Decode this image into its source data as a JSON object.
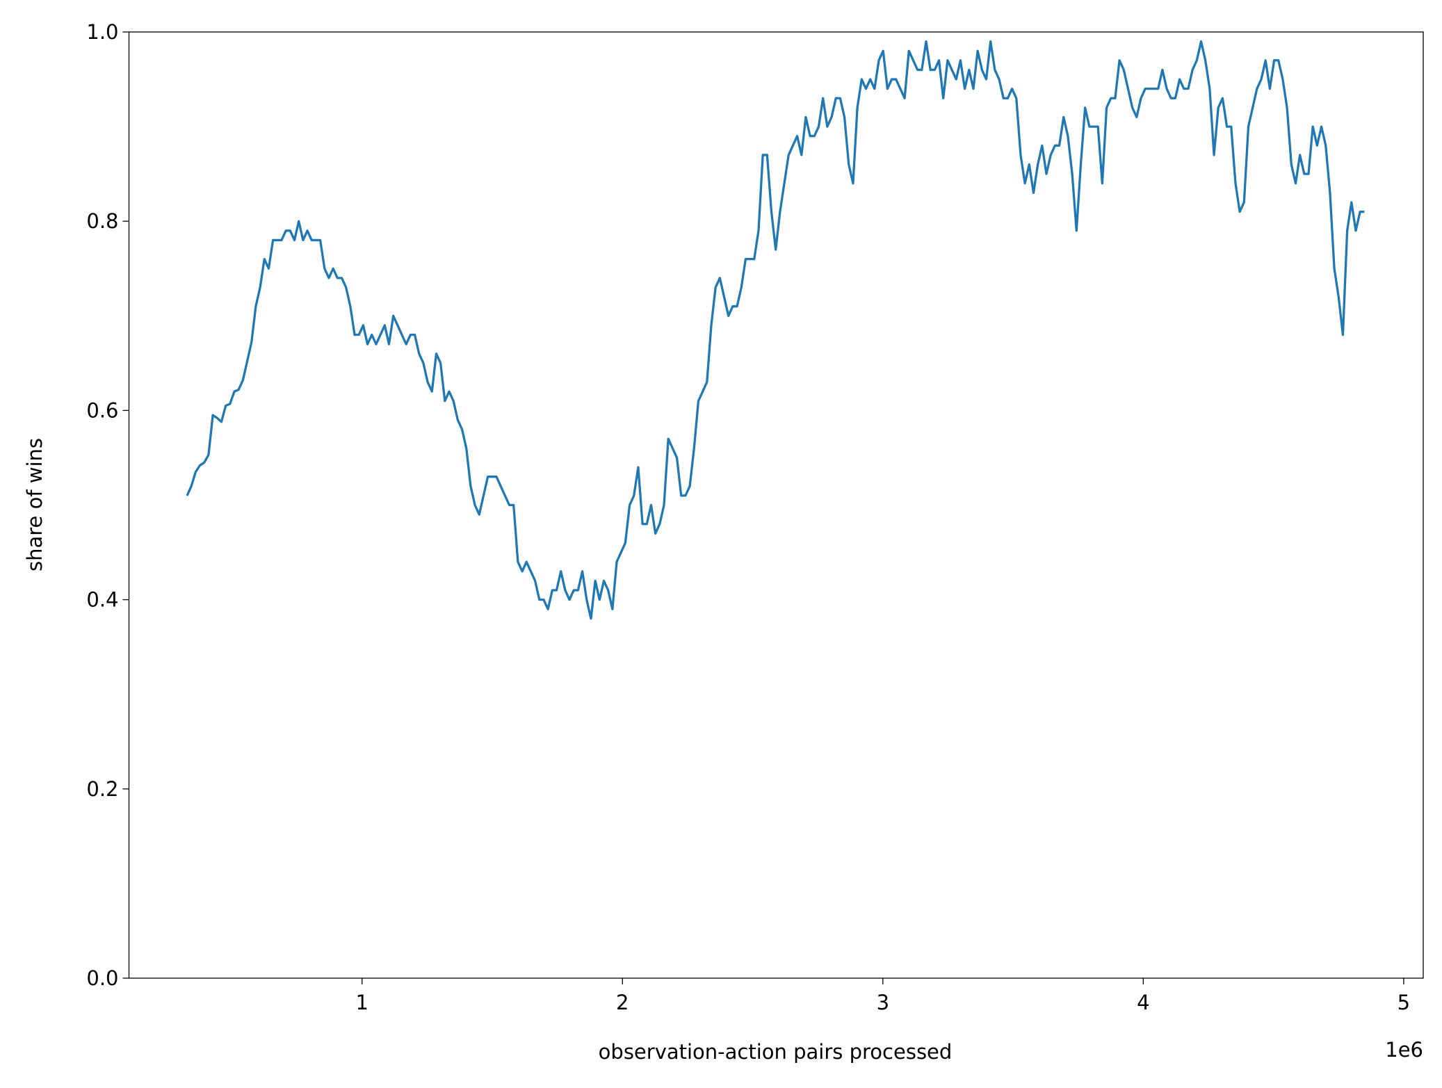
{
  "chart_data": {
    "type": "line",
    "xlabel": "observation-action pairs processed",
    "ylabel": "share of wins",
    "x_offset_label": "1e6",
    "xlim": [
      105000,
      5075000
    ],
    "ylim": [
      0,
      1
    ],
    "xticks": [
      {
        "value": 1000000,
        "label": "1"
      },
      {
        "value": 2000000,
        "label": "2"
      },
      {
        "value": 3000000,
        "label": "3"
      },
      {
        "value": 4000000,
        "label": "4"
      },
      {
        "value": 5000000,
        "label": "5"
      }
    ],
    "yticks": [
      {
        "value": 0,
        "label": "0.0"
      },
      0.2,
      0.4,
      0.6,
      0.8,
      {
        "value": 1,
        "label": "1.0"
      }
    ],
    "grid": false,
    "x": [
      328000,
      344500,
      361000,
      377500,
      394000,
      410500,
      427000,
      443500,
      460000,
      476500,
      493000,
      509500,
      526000,
      542500,
      559000,
      575500,
      592000,
      608500,
      625000,
      641500,
      658000,
      674500,
      691000,
      707500,
      724000,
      740500,
      757000,
      773500,
      790000,
      806500,
      823000,
      839500,
      856000,
      872500,
      889000,
      905500,
      922000,
      938500,
      955000,
      971500,
      988000,
      1004500,
      1021000,
      1037500,
      1054000,
      1070500,
      1087000,
      1103500,
      1120000,
      1136500,
      1153000,
      1169500,
      1186000,
      1202500,
      1219000,
      1235500,
      1252000,
      1268500,
      1285000,
      1301500,
      1318000,
      1334500,
      1351000,
      1367500,
      1384000,
      1400500,
      1417000,
      1433500,
      1450000,
      1466500,
      1483000,
      1499500,
      1516000,
      1532500,
      1549000,
      1565500,
      1582000,
      1598500,
      1615000,
      1631500,
      1648000,
      1664500,
      1681000,
      1697500,
      1714000,
      1730500,
      1747000,
      1763500,
      1780000,
      1796500,
      1813000,
      1829500,
      1846000,
      1862500,
      1879000,
      1895500,
      1912000,
      1928500,
      1945000,
      1961500,
      1978000,
      1994500,
      2011000,
      2027500,
      2044000,
      2060500,
      2077000,
      2093500,
      2110000,
      2126500,
      2143000,
      2159500,
      2176000,
      2192500,
      2209000,
      2225500,
      2242000,
      2258500,
      2275000,
      2291500,
      2308000,
      2324500,
      2341000,
      2357500,
      2374000,
      2390500,
      2407000,
      2423500,
      2440000,
      2456500,
      2473000,
      2489500,
      2506000,
      2522500,
      2539000,
      2555500,
      2572000,
      2588500,
      2605000,
      2621500,
      2638000,
      2654500,
      2671000,
      2687500,
      2704000,
      2720500,
      2737000,
      2753500,
      2770000,
      2786500,
      2803000,
      2819500,
      2836000,
      2852500,
      2869000,
      2885500,
      2902000,
      2918500,
      2935000,
      2951500,
      2968000,
      2984500,
      3001000,
      3017500,
      3034000,
      3050500,
      3067000,
      3083500,
      3100000,
      3116500,
      3133000,
      3149500,
      3166000,
      3182500,
      3199000,
      3215500,
      3232000,
      3248500,
      3265000,
      3281500,
      3298000,
      3314500,
      3331000,
      3347500,
      3364000,
      3380500,
      3397000,
      3413500,
      3430000,
      3446500,
      3463000,
      3479500,
      3496000,
      3512500,
      3529000,
      3545500,
      3562000,
      3578500,
      3595000,
      3611500,
      3628000,
      3644500,
      3661000,
      3677500,
      3694000,
      3710500,
      3727000,
      3743500,
      3760000,
      3776500,
      3793000,
      3809500,
      3826000,
      3842500,
      3859000,
      3875500,
      3892000,
      3908500,
      3925000,
      3941500,
      3958000,
      3974500,
      3991000,
      4007500,
      4024000,
      4040500,
      4057000,
      4073500,
      4090000,
      4106500,
      4123000,
      4139500,
      4156000,
      4172500,
      4189000,
      4205500,
      4222000,
      4238500,
      4255000,
      4271500,
      4288000,
      4304500,
      4321000,
      4337500,
      4354000,
      4370500,
      4387000,
      4403500,
      4420000,
      4436500,
      4453000,
      4469500,
      4486000,
      4502500,
      4519000,
      4535500,
      4552000,
      4568500,
      4585000,
      4601500,
      4618000,
      4634500,
      4651000,
      4667500,
      4684000,
      4700500,
      4717000,
      4733500,
      4750000,
      4766500,
      4783000,
      4799500,
      4816000,
      4832500,
      4849000
    ],
    "series": [
      {
        "color": "#1f77b4",
        "values": [
          0.51,
          0.52,
          0.535,
          0.542,
          0.545,
          0.553,
          0.595,
          0.592,
          0.588,
          0.605,
          0.607,
          0.62,
          0.622,
          0.632,
          0.652,
          0.672,
          0.71,
          0.73,
          0.76,
          0.75,
          0.78,
          0.78,
          0.78,
          0.79,
          0.79,
          0.78,
          0.8,
          0.78,
          0.79,
          0.78,
          0.78,
          0.78,
          0.75,
          0.74,
          0.75,
          0.74,
          0.74,
          0.73,
          0.71,
          0.68,
          0.68,
          0.69,
          0.67,
          0.68,
          0.67,
          0.68,
          0.69,
          0.67,
          0.7,
          0.69,
          0.68,
          0.67,
          0.68,
          0.68,
          0.66,
          0.65,
          0.63,
          0.62,
          0.66,
          0.65,
          0.61,
          0.62,
          0.61,
          0.59,
          0.58,
          0.56,
          0.52,
          0.5,
          0.49,
          0.51,
          0.53,
          0.53,
          0.53,
          0.52,
          0.51,
          0.5,
          0.5,
          0.44,
          0.43,
          0.44,
          0.43,
          0.42,
          0.4,
          0.4,
          0.39,
          0.41,
          0.41,
          0.43,
          0.41,
          0.4,
          0.41,
          0.41,
          0.43,
          0.4,
          0.38,
          0.42,
          0.4,
          0.42,
          0.41,
          0.39,
          0.44,
          0.45,
          0.46,
          0.5,
          0.51,
          0.54,
          0.48,
          0.48,
          0.5,
          0.47,
          0.48,
          0.5,
          0.57,
          0.56,
          0.55,
          0.51,
          0.51,
          0.52,
          0.56,
          0.61,
          0.62,
          0.63,
          0.69,
          0.73,
          0.74,
          0.72,
          0.7,
          0.71,
          0.71,
          0.73,
          0.76,
          0.76,
          0.76,
          0.79,
          0.87,
          0.87,
          0.81,
          0.77,
          0.81,
          0.84,
          0.87,
          0.88,
          0.89,
          0.87,
          0.91,
          0.89,
          0.89,
          0.9,
          0.93,
          0.9,
          0.91,
          0.93,
          0.93,
          0.91,
          0.86,
          0.84,
          0.92,
          0.95,
          0.94,
          0.95,
          0.94,
          0.97,
          0.98,
          0.94,
          0.95,
          0.95,
          0.94,
          0.93,
          0.98,
          0.97,
          0.96,
          0.96,
          0.99,
          0.96,
          0.96,
          0.97,
          0.93,
          0.97,
          0.96,
          0.95,
          0.97,
          0.94,
          0.96,
          0.94,
          0.98,
          0.96,
          0.95,
          0.99,
          0.96,
          0.95,
          0.93,
          0.93,
          0.94,
          0.93,
          0.87,
          0.84,
          0.86,
          0.83,
          0.86,
          0.88,
          0.85,
          0.87,
          0.88,
          0.88,
          0.91,
          0.89,
          0.85,
          0.79,
          0.86,
          0.92,
          0.9,
          0.9,
          0.9,
          0.84,
          0.92,
          0.93,
          0.93,
          0.97,
          0.96,
          0.94,
          0.92,
          0.91,
          0.93,
          0.94,
          0.94,
          0.94,
          0.94,
          0.96,
          0.94,
          0.93,
          0.93,
          0.95,
          0.94,
          0.94,
          0.96,
          0.97,
          0.99,
          0.97,
          0.94,
          0.87,
          0.92,
          0.93,
          0.9,
          0.9,
          0.84,
          0.81,
          0.82,
          0.9,
          0.92,
          0.94,
          0.95,
          0.97,
          0.94,
          0.97,
          0.97,
          0.95,
          0.92,
          0.86,
          0.84,
          0.87,
          0.85,
          0.85,
          0.9,
          0.88,
          0.9,
          0.88,
          0.83,
          0.75,
          0.72,
          0.68,
          0.79,
          0.82,
          0.79,
          0.81,
          0.81
        ]
      }
    ]
  }
}
